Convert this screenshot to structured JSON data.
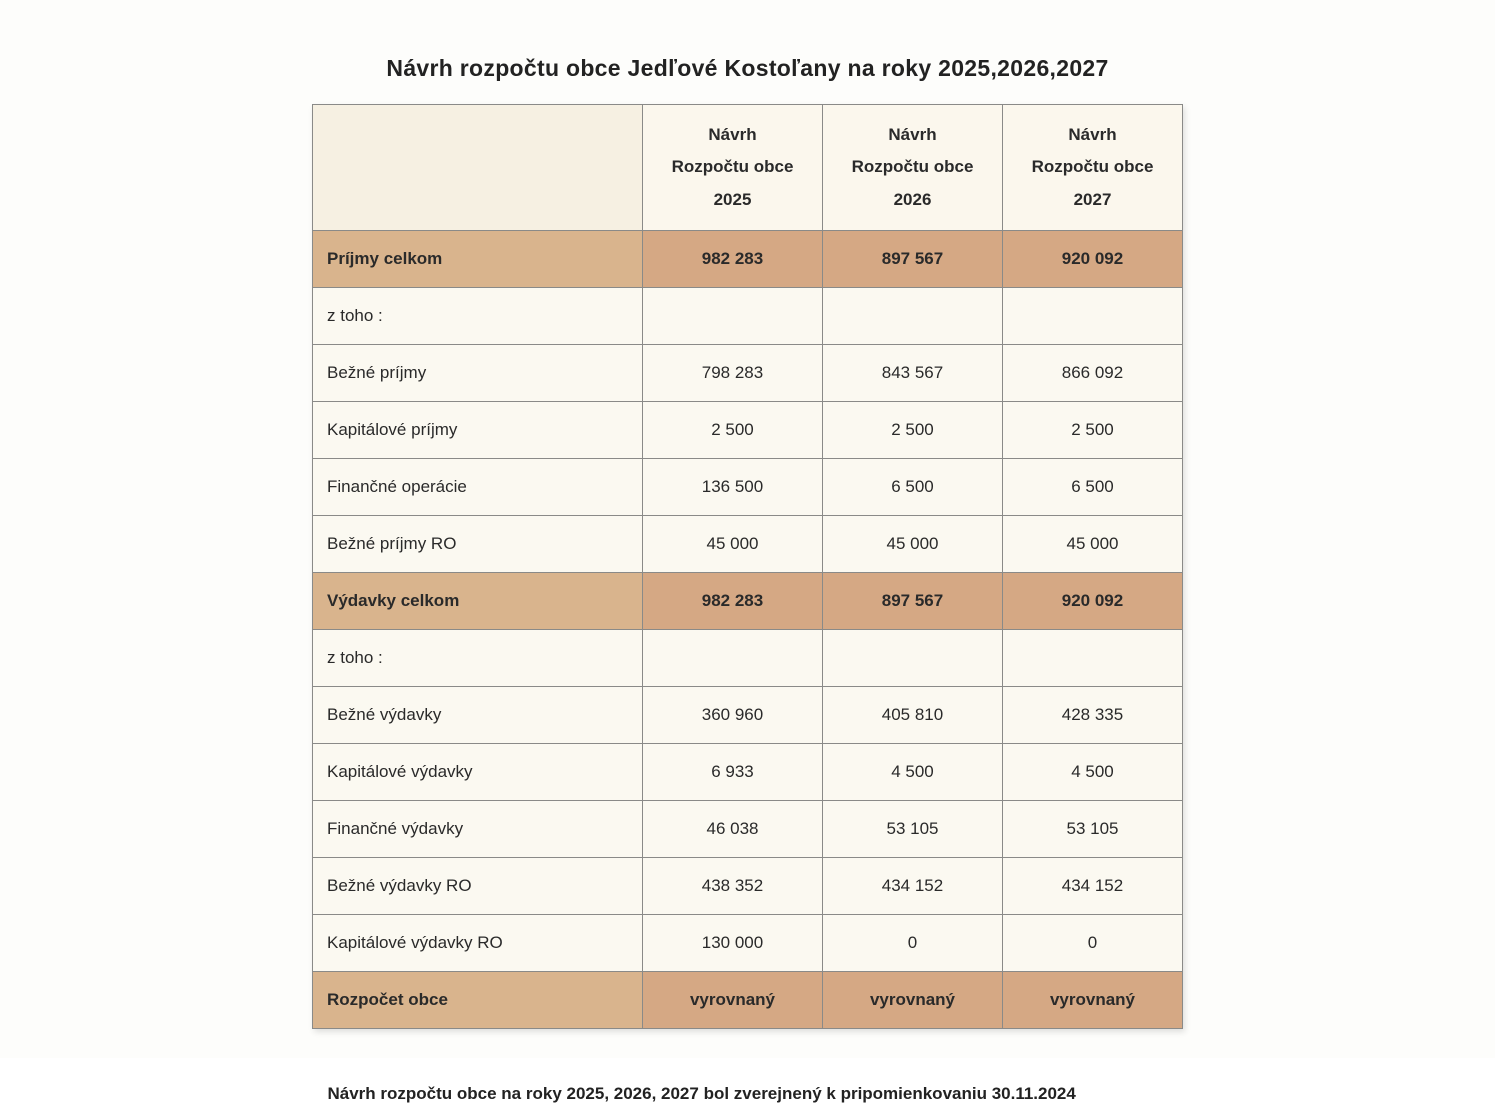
{
  "title": "Návrh  rozpočtu obce Jedľové Kostoľany na roky 2025,2026,2027",
  "footnote": "Návrh rozpočtu  obce na roky 2025, 2026, 2027 bol zverejnený k pripomienkovaniu 30.11.2024",
  "colors": {
    "page_bg": "#fdfdfb",
    "header_bg": "#fbf7ed",
    "header_first_bg": "#f6f0e2",
    "cell_bg": "#fbf9f1",
    "highlight_bg": "#d5a884",
    "highlight_label_bg": "#d9b48d",
    "border": "#8a8a88",
    "text": "#2a2a2a"
  },
  "columns": [
    {
      "line1": "",
      "line2": "",
      "line3": ""
    },
    {
      "line1": "Návrh",
      "line2": "Rozpočtu obce",
      "line3": "2025"
    },
    {
      "line1": "Návrh",
      "line2": "Rozpočtu obce",
      "line3": "2026"
    },
    {
      "line1": "Návrh",
      "line2": "Rozpočtu obce",
      "line3": "2027"
    }
  ],
  "rows": [
    {
      "label": "Príjmy celkom",
      "c1": "982 283",
      "c2": "897 567",
      "c3": "920 092",
      "highlight": true
    },
    {
      "label": "z toho :",
      "c1": "",
      "c2": "",
      "c3": "",
      "highlight": false
    },
    {
      "label": "Bežné príjmy",
      "c1": "798 283",
      "c2": "843 567",
      "c3": "866 092",
      "highlight": false
    },
    {
      "label": "Kapitálové príjmy",
      "c1": "2 500",
      "c2": "2 500",
      "c3": "2 500",
      "highlight": false
    },
    {
      "label": "Finančné operácie",
      "c1": "136 500",
      "c2": "6 500",
      "c3": "6 500",
      "highlight": false
    },
    {
      "label": "Bežné príjmy RO",
      "c1": "45 000",
      "c2": "45 000",
      "c3": "45 000",
      "highlight": false
    },
    {
      "label": "Výdavky celkom",
      "c1": "982 283",
      "c2": "897 567",
      "c3": "920 092",
      "highlight": true
    },
    {
      "label": "z toho :",
      "c1": "",
      "c2": "",
      "c3": "",
      "highlight": false
    },
    {
      "label": "Bežné výdavky",
      "c1": "360 960",
      "c2": "405 810",
      "c3": "428 335",
      "highlight": false
    },
    {
      "label": "Kapitálové výdavky",
      "c1": "6 933",
      "c2": "4 500",
      "c3": "4 500",
      "highlight": false
    },
    {
      "label": "Finančné výdavky",
      "c1": "46 038",
      "c2": "53 105",
      "c3": "53 105",
      "highlight": false
    },
    {
      "label": "Bežné výdavky RO",
      "c1": "438 352",
      "c2": "434 152",
      "c3": "434 152",
      "highlight": false
    },
    {
      "label": "Kapitálové výdavky RO",
      "c1": "130 000",
      "c2": "0",
      "c3": "0",
      "highlight": false
    },
    {
      "label": "Rozpočet  obce",
      "c1": "vyrovnaný",
      "c2": "vyrovnaný",
      "c3": "vyrovnaný",
      "highlight": true
    }
  ]
}
